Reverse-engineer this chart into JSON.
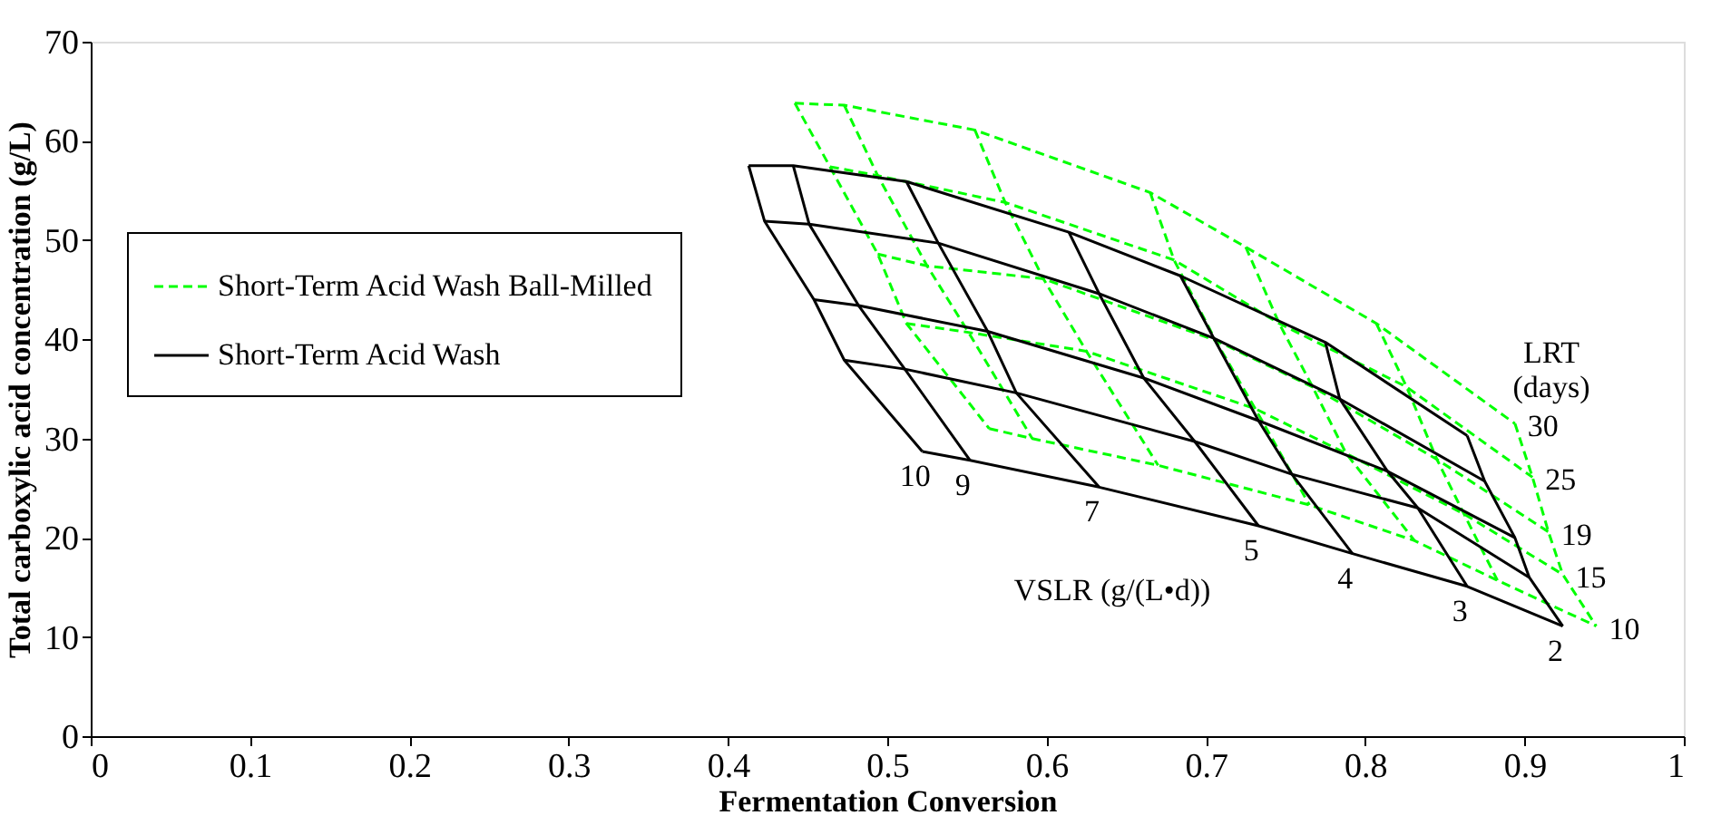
{
  "chart_data": {
    "type": "line",
    "xlabel": "Fermentation Conversion",
    "ylabel": "Total carboxylic acid concentration (g/L)",
    "xlim": [
      0,
      1
    ],
    "xticks": [
      0,
      0.1,
      0.2,
      0.3,
      0.4,
      0.5,
      0.6,
      0.7,
      0.8,
      0.9,
      1
    ],
    "ylim": [
      0,
      70
    ],
    "yticks": [
      0,
      10,
      20,
      30,
      40,
      50,
      60,
      70
    ],
    "grid": false,
    "legend": "left",
    "marker": "none",
    "series": [
      {
        "name": "Short-Term Acid Wash Ball-Milled",
        "color": "#00ff00",
        "line_style": "dashed",
        "x": [
          0.442,
          0.464,
          0.494,
          0.512,
          0.564
        ],
        "values": [
          63.8,
          57.4,
          48.6,
          41.6,
          31.0
        ]
      },
      {
        "color": "#00ff00",
        "line_style": "dashed",
        "x": [
          0.473,
          0.494,
          0.525,
          0.551,
          0.591
        ],
        "values": [
          63.6,
          56.5,
          47.4,
          40.7,
          30.0
        ]
      },
      {
        "color": "#00ff00",
        "line_style": "dashed",
        "x": [
          0.555,
          0.574,
          0.598,
          0.625,
          0.67
        ],
        "values": [
          61.1,
          53.8,
          46.1,
          38.8,
          27.3
        ]
      },
      {
        "color": "#00ff00",
        "line_style": "dashed",
        "x": [
          0.665,
          0.68,
          0.706,
          0.731,
          0.765
        ],
        "values": [
          54.8,
          48.0,
          39.9,
          33.0,
          23.3
        ]
      },
      {
        "color": "#00ff00",
        "line_style": "dashed",
        "x": [
          0.725,
          0.746,
          0.767,
          0.788,
          0.831
        ],
        "values": [
          49.3,
          41.6,
          35.2,
          28.5,
          19.7
        ]
      },
      {
        "color": "#00ff00",
        "line_style": "dashed",
        "x": [
          0.807,
          0.826,
          0.845,
          0.862,
          0.883
        ],
        "values": [
          41.6,
          35.2,
          27.9,
          22.4,
          15.7
        ]
      },
      {
        "color": "#00ff00",
        "line_style": "dashed",
        "x": [
          0.894,
          0.905,
          0.915,
          0.924,
          0.945
        ],
        "values": [
          31.5,
          26.1,
          20.6,
          16.3,
          11.1
        ]
      },
      {
        "color": "#00ff00",
        "line_style": "dashed",
        "x": [
          0.442,
          0.473,
          0.555,
          0.665,
          0.725,
          0.807,
          0.894
        ],
        "values": [
          63.8,
          63.6,
          61.1,
          54.8,
          49.3,
          41.6,
          31.5
        ]
      },
      {
        "color": "#00ff00",
        "line_style": "dashed",
        "x": [
          0.464,
          0.494,
          0.574,
          0.68,
          0.746,
          0.826,
          0.905
        ],
        "values": [
          57.4,
          56.5,
          53.8,
          48.0,
          41.6,
          35.2,
          26.1
        ]
      },
      {
        "color": "#00ff00",
        "line_style": "dashed",
        "x": [
          0.494,
          0.525,
          0.598,
          0.706,
          0.767,
          0.845,
          0.915
        ],
        "values": [
          48.6,
          47.4,
          46.1,
          39.9,
          35.2,
          27.9,
          20.6
        ]
      },
      {
        "color": "#00ff00",
        "line_style": "dashed",
        "x": [
          0.512,
          0.551,
          0.625,
          0.731,
          0.788,
          0.862,
          0.924
        ],
        "values": [
          41.6,
          40.7,
          38.8,
          33.0,
          28.5,
          22.4,
          16.3
        ]
      },
      {
        "color": "#00ff00",
        "line_style": "dashed",
        "x": [
          0.564,
          0.591,
          0.67,
          0.765,
          0.831,
          0.883,
          0.945
        ],
        "values": [
          31.0,
          30.0,
          27.3,
          23.3,
          19.7,
          15.7,
          11.1
        ]
      },
      {
        "name": "Short-Term Acid Wash",
        "color": "#000000",
        "line_style": "solid",
        "x": [
          0.413,
          0.423,
          0.454,
          0.473,
          0.522
        ],
        "values": [
          57.5,
          51.9,
          44.0,
          37.9,
          28.7
        ]
      },
      {
        "color": "#000000",
        "line_style": "solid",
        "x": [
          0.441,
          0.451,
          0.482,
          0.511,
          0.552
        ],
        "values": [
          57.5,
          51.6,
          43.4,
          37.0,
          27.8
        ]
      },
      {
        "color": "#000000",
        "line_style": "solid",
        "x": [
          0.512,
          0.532,
          0.563,
          0.581,
          0.633
        ],
        "values": [
          55.9,
          49.7,
          40.8,
          34.6,
          25.1
        ]
      },
      {
        "color": "#000000",
        "line_style": "solid",
        "x": [
          0.614,
          0.633,
          0.661,
          0.693,
          0.733
        ],
        "values": [
          50.8,
          44.6,
          36.1,
          29.7,
          21.2
        ]
      },
      {
        "color": "#000000",
        "line_style": "solid",
        "x": [
          0.684,
          0.705,
          0.733,
          0.754,
          0.792
        ],
        "values": [
          46.4,
          40.1,
          31.8,
          26.4,
          18.4
        ]
      },
      {
        "color": "#000000",
        "line_style": "solid",
        "x": [
          0.775,
          0.784,
          0.814,
          0.833,
          0.864
        ],
        "values": [
          39.7,
          34.0,
          26.7,
          23.0,
          15.1
        ]
      },
      {
        "color": "#000000",
        "line_style": "solid",
        "x": [
          0.864,
          0.875,
          0.894,
          0.903,
          0.924
        ],
        "values": [
          30.3,
          25.7,
          20.0,
          16.0,
          11.1
        ]
      },
      {
        "color": "#000000",
        "line_style": "solid",
        "x": [
          0.413,
          0.441,
          0.512,
          0.614,
          0.684,
          0.775,
          0.864
        ],
        "values": [
          57.5,
          57.5,
          55.9,
          50.8,
          46.4,
          39.7,
          30.3
        ]
      },
      {
        "color": "#000000",
        "line_style": "solid",
        "x": [
          0.423,
          0.451,
          0.532,
          0.633,
          0.705,
          0.784,
          0.875
        ],
        "values": [
          51.9,
          51.6,
          49.7,
          44.6,
          40.1,
          34.0,
          25.7
        ]
      },
      {
        "color": "#000000",
        "line_style": "solid",
        "x": [
          0.454,
          0.482,
          0.563,
          0.661,
          0.733,
          0.814,
          0.894
        ],
        "values": [
          44.0,
          43.4,
          40.8,
          36.1,
          31.8,
          26.7,
          20.0
        ]
      },
      {
        "color": "#000000",
        "line_style": "solid",
        "x": [
          0.473,
          0.511,
          0.581,
          0.693,
          0.754,
          0.833,
          0.903
        ],
        "values": [
          37.9,
          37.0,
          34.6,
          29.7,
          26.4,
          23.0,
          16.0
        ]
      },
      {
        "color": "#000000",
        "line_style": "solid",
        "x": [
          0.522,
          0.552,
          0.633,
          0.733,
          0.792,
          0.864,
          0.924
        ],
        "values": [
          28.7,
          27.8,
          25.1,
          21.2,
          18.4,
          15.1,
          11.1
        ]
      }
    ],
    "annotations": [
      {
        "text": "10",
        "x": 0.522,
        "y": 28.7
      },
      {
        "text": "9",
        "x": 0.552,
        "y": 27.8
      },
      {
        "text": "7",
        "x": 0.633,
        "y": 25.1
      },
      {
        "text": "5",
        "x": 0.733,
        "y": 21.2
      },
      {
        "text": "4",
        "x": 0.792,
        "y": 18.4
      },
      {
        "text": "3",
        "x": 0.864,
        "y": 15.1
      },
      {
        "text": "2",
        "x": 0.924,
        "y": 11.1
      },
      {
        "text": "30",
        "x": 0.894,
        "y": 31.5
      },
      {
        "text": "25",
        "x": 0.905,
        "y": 26.1
      },
      {
        "text": "19",
        "x": 0.915,
        "y": 20.6
      },
      {
        "text": "15",
        "x": 0.924,
        "y": 16.3
      },
      {
        "text": "10",
        "x": 0.945,
        "y": 11.1
      },
      "LRT\n(days)",
      "VSLR (g/(L•d))"
    ]
  }
}
